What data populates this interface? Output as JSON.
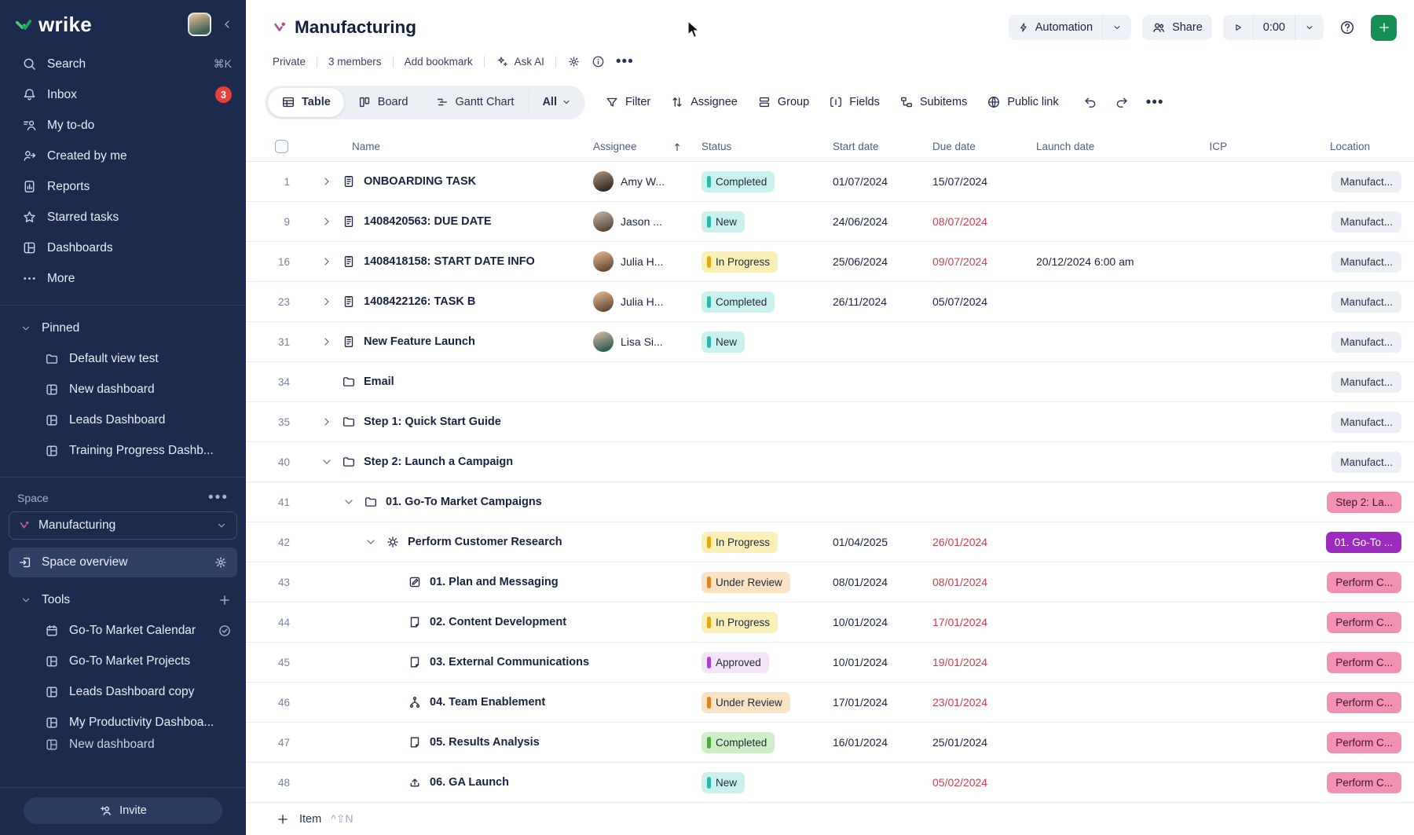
{
  "colors": {
    "sidebar_bg": "#1C2B4D",
    "sidebar_active": "#2F3F66",
    "badge_red": "#E8413D",
    "brand_green": "#1FB25F",
    "add_button": "#168F55",
    "due_overdue": "#C9404E",
    "st_teal_bg": "#C9F2EF",
    "st_teal_bar": "#2FB7AE",
    "st_yellow_bg": "#FBEFB8",
    "st_yellow_bar": "#DFA912",
    "st_orange_bg": "#FBE2C2",
    "st_orange_bar": "#E0821F",
    "st_lav_bg": "#F4E4FA",
    "st_lav_bar": "#AC3FD4",
    "st_green_bg": "#CDEFC6",
    "st_green_bar": "#56A344",
    "loc_gray_bg": "#ECF0F5",
    "loc_pink_bg": "#F291B3",
    "loc_purple_bg": "#9C2BBF"
  },
  "sidebar": {
    "logo_text": "wrike",
    "nav": [
      {
        "key": "search",
        "icon": "search",
        "label": "Search",
        "shortcut": "⌘K"
      },
      {
        "key": "inbox",
        "icon": "bell",
        "label": "Inbox",
        "badge": "3"
      },
      {
        "key": "my-todo",
        "icon": "todo",
        "label": "My to-do"
      },
      {
        "key": "created-by-me",
        "icon": "person-arrow",
        "label": "Created by me"
      },
      {
        "key": "reports",
        "icon": "report",
        "label": "Reports"
      },
      {
        "key": "starred-tasks",
        "icon": "star",
        "label": "Starred tasks"
      },
      {
        "key": "dashboards",
        "icon": "dashboard",
        "label": "Dashboards"
      },
      {
        "key": "more",
        "icon": "dots",
        "label": "More"
      }
    ],
    "pinned": {
      "label": "Pinned",
      "items": [
        {
          "key": "default-view-test",
          "icon": "folder",
          "label": "Default view test"
        },
        {
          "key": "new-dashboard",
          "icon": "dashboard",
          "label": "New dashboard"
        },
        {
          "key": "leads-dashboard",
          "icon": "dashboard",
          "label": "Leads Dashboard"
        },
        {
          "key": "training-progress-dashboard",
          "icon": "dashboard",
          "label": "Training Progress Dashb..."
        }
      ]
    },
    "space": {
      "section_label": "Space",
      "selector_label": "Manufacturing",
      "overview_label": "Space overview",
      "tools_label": "Tools",
      "tools": [
        {
          "key": "go-to-market-calendar",
          "icon": "calendar",
          "label": "Go-To Market Calendar",
          "trailing": "check-circle"
        },
        {
          "key": "go-to-market-projects",
          "icon": "dashboard",
          "label": "Go-To Market Projects"
        },
        {
          "key": "leads-dashboard-copy",
          "icon": "dashboard",
          "label": "Leads Dashboard copy"
        },
        {
          "key": "my-productivity-dashboard",
          "icon": "dashboard",
          "label": "My Productivity Dashboa..."
        },
        {
          "key": "new-dashboard-2",
          "icon": "dashboard",
          "label": "New dashboard",
          "clipped": true
        }
      ]
    },
    "invite_label": "Invite"
  },
  "header": {
    "title": "Manufacturing",
    "meta": {
      "privacy": "Private",
      "members": "3 members",
      "bookmark": "Add bookmark",
      "ask_ai": "Ask AI"
    },
    "actions": {
      "automation_label": "Automation",
      "share_label": "Share",
      "timer_value": "0:00"
    }
  },
  "toolbar": {
    "tabs": [
      {
        "label": "Table",
        "icon": "table",
        "active": true
      },
      {
        "label": "Board",
        "icon": "board",
        "active": false
      },
      {
        "label": "Gantt Chart",
        "icon": "gantt",
        "active": false
      }
    ],
    "all_label": "All",
    "actions": [
      {
        "label": "Filter",
        "icon": "filter"
      },
      {
        "label": "Assignee",
        "icon": "sort-updown"
      },
      {
        "label": "Group",
        "icon": "group"
      },
      {
        "label": "Fields",
        "icon": "fields"
      },
      {
        "label": "Subitems",
        "icon": "subitems"
      },
      {
        "label": "Public link",
        "icon": "globe"
      }
    ]
  },
  "table": {
    "columns": {
      "name": "Name",
      "assignee": "Assignee",
      "status": "Status",
      "start": "Start date",
      "due": "Due date",
      "launch": "Launch date",
      "icp": "ICP",
      "location": "Location"
    },
    "rows": [
      {
        "id": "1",
        "indent": 0,
        "chevron": "right",
        "icon": "task",
        "name": "ONBOARDING TASK",
        "assignee": {
          "label": "Amy W...",
          "avatar": "amy"
        },
        "status": {
          "label": "Completed",
          "type": "teal"
        },
        "start": "01/07/2024",
        "due": "15/07/2024",
        "overdue": false,
        "launch": "",
        "location": {
          "label": "Manufact...",
          "style": "gray"
        }
      },
      {
        "id": "9",
        "indent": 0,
        "chevron": "right",
        "icon": "task",
        "name": "1408420563: DUE DATE",
        "assignee": {
          "label": "Jason ...",
          "avatar": "jason"
        },
        "status": {
          "label": "New",
          "type": "teal"
        },
        "start": "24/06/2024",
        "due": "08/07/2024",
        "overdue": true,
        "launch": "",
        "location": {
          "label": "Manufact...",
          "style": "gray"
        }
      },
      {
        "id": "16",
        "indent": 0,
        "chevron": "right",
        "icon": "task",
        "name": "1408418158: START DATE INFO",
        "assignee": {
          "label": "Julia H...",
          "avatar": "julia"
        },
        "status": {
          "label": "In Progress",
          "type": "yellow"
        },
        "start": "25/06/2024",
        "due": "09/07/2024",
        "overdue": true,
        "launch": "20/12/2024 6:00 am",
        "location": {
          "label": "Manufact...",
          "style": "gray"
        }
      },
      {
        "id": "23",
        "indent": 0,
        "chevron": "right",
        "icon": "task",
        "name": "1408422126: TASK B",
        "assignee": {
          "label": "Julia H...",
          "avatar": "julia"
        },
        "status": {
          "label": "Completed",
          "type": "teal"
        },
        "start": "26/11/2024",
        "due": "05/07/2024",
        "overdue": false,
        "launch": "",
        "location": {
          "label": "Manufact...",
          "style": "gray"
        }
      },
      {
        "id": "31",
        "indent": 0,
        "chevron": "right",
        "icon": "task",
        "name": "New Feature Launch",
        "assignee": {
          "label": "Lisa Si...",
          "avatar": "lisa"
        },
        "status": {
          "label": "New",
          "type": "teal"
        },
        "start": "",
        "due": "",
        "overdue": false,
        "launch": "",
        "location": {
          "label": "Manufact...",
          "style": "gray"
        }
      },
      {
        "id": "34",
        "indent": 0,
        "chevron": null,
        "icon": "folder",
        "name": "Email",
        "assignee": null,
        "status": null,
        "start": "",
        "due": "",
        "overdue": false,
        "launch": "",
        "location": {
          "label": "Manufact...",
          "style": "gray"
        }
      },
      {
        "id": "35",
        "indent": 0,
        "chevron": "right",
        "icon": "folder",
        "name": "Step 1: Quick Start Guide",
        "assignee": null,
        "status": null,
        "start": "",
        "due": "",
        "overdue": false,
        "launch": "",
        "location": {
          "label": "Manufact...",
          "style": "gray"
        }
      },
      {
        "id": "40",
        "indent": 0,
        "chevron": "down",
        "icon": "folder",
        "name": "Step 2: Launch a Campaign",
        "assignee": null,
        "status": null,
        "start": "",
        "due": "",
        "overdue": false,
        "launch": "",
        "location": {
          "label": "Manufact...",
          "style": "gray"
        }
      },
      {
        "id": "41",
        "indent": 1,
        "chevron": "down",
        "icon": "folder",
        "name": "01. Go-To Market Campaigns",
        "assignee": null,
        "status": null,
        "start": "",
        "due": "",
        "overdue": false,
        "launch": "",
        "location": {
          "label": "Step 2: La...",
          "style": "pink"
        }
      },
      {
        "id": "42",
        "indent": 2,
        "chevron": "down",
        "icon": "campaign",
        "name": "Perform Customer Research",
        "assignee": null,
        "status": {
          "label": "In Progress",
          "type": "yellow"
        },
        "start": "01/04/2025",
        "due": "26/01/2024",
        "overdue": true,
        "launch": "",
        "location": {
          "label": "01. Go-To ...",
          "style": "purple"
        }
      },
      {
        "id": "43",
        "indent": 3,
        "chevron": null,
        "icon": "doc-edit",
        "name": "01. Plan and Messaging",
        "assignee": null,
        "status": {
          "label": "Under Review",
          "type": "orange"
        },
        "start": "08/01/2024",
        "due": "08/01/2024",
        "overdue": true,
        "launch": "",
        "location": {
          "label": "Perform C...",
          "style": "pink"
        }
      },
      {
        "id": "44",
        "indent": 3,
        "chevron": null,
        "icon": "doc",
        "name": "02. Content Development",
        "assignee": null,
        "status": {
          "label": "In Progress",
          "type": "yellow"
        },
        "start": "10/01/2024",
        "due": "17/01/2024",
        "overdue": true,
        "launch": "",
        "location": {
          "label": "Perform C...",
          "style": "pink"
        }
      },
      {
        "id": "45",
        "indent": 3,
        "chevron": null,
        "icon": "doc",
        "name": "03. External Communications",
        "assignee": null,
        "status": {
          "label": "Approved",
          "type": "lavender"
        },
        "start": "10/01/2024",
        "due": "19/01/2024",
        "overdue": true,
        "launch": "",
        "location": {
          "label": "Perform C...",
          "style": "pink"
        }
      },
      {
        "id": "46",
        "indent": 3,
        "chevron": null,
        "icon": "branch",
        "name": "04. Team Enablement",
        "assignee": null,
        "status": {
          "label": "Under Review",
          "type": "orange"
        },
        "start": "17/01/2024",
        "due": "23/01/2024",
        "overdue": true,
        "launch": "",
        "location": {
          "label": "Perform C...",
          "style": "pink"
        }
      },
      {
        "id": "47",
        "indent": 3,
        "chevron": null,
        "icon": "doc",
        "name": "05. Results Analysis",
        "assignee": null,
        "status": {
          "label": "Completed",
          "type": "green"
        },
        "start": "16/01/2024",
        "due": "25/01/2024",
        "overdue": false,
        "launch": "",
        "location": {
          "label": "Perform C...",
          "style": "pink"
        }
      },
      {
        "id": "48",
        "indent": 3,
        "chevron": null,
        "icon": "launch",
        "name": "06. GA Launch",
        "assignee": null,
        "status": {
          "label": "New",
          "type": "teal"
        },
        "start": "",
        "due": "05/02/2024",
        "overdue": true,
        "launch": "",
        "location": {
          "label": "Perform C...",
          "style": "pink"
        }
      }
    ]
  },
  "footer": {
    "add_label": "Item",
    "shortcut": "^⇧N"
  }
}
